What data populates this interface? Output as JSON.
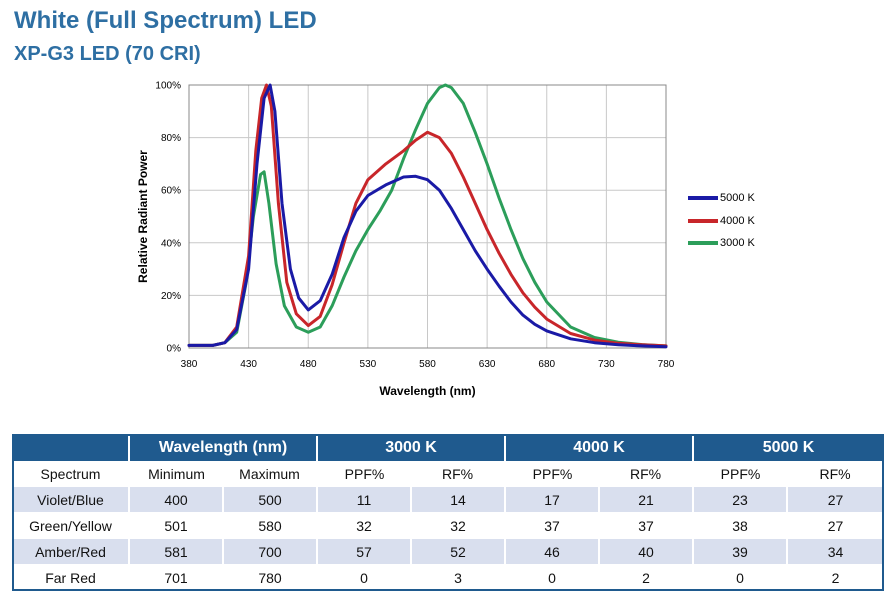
{
  "header": {
    "title": "White (Full Spectrum) LED",
    "subtitle": "XP-G3 LED (70 CRI)"
  },
  "chart_data": {
    "type": "line",
    "xlabel": "Wavelength (nm)",
    "ylabel": "Relative Radiant Power",
    "xlim": [
      380,
      780
    ],
    "ylim": [
      0,
      100
    ],
    "x_ticks": [
      380,
      430,
      480,
      530,
      580,
      630,
      680,
      730,
      780
    ],
    "y_ticks": [
      0,
      20,
      40,
      60,
      80,
      100
    ],
    "y_tick_labels": [
      "0%",
      "20%",
      "40%",
      "60%",
      "80%",
      "100%"
    ],
    "grid": true,
    "legend_position": "right",
    "series": [
      {
        "name": "5000 K",
        "color": "#1a1aa6",
        "points": [
          [
            380,
            1
          ],
          [
            400,
            1
          ],
          [
            410,
            2
          ],
          [
            420,
            7
          ],
          [
            430,
            30
          ],
          [
            437,
            70
          ],
          [
            443,
            95
          ],
          [
            448,
            100
          ],
          [
            452,
            90
          ],
          [
            458,
            55
          ],
          [
            465,
            30
          ],
          [
            472,
            19
          ],
          [
            480,
            14.5
          ],
          [
            490,
            18
          ],
          [
            500,
            28
          ],
          [
            510,
            42
          ],
          [
            520,
            52
          ],
          [
            530,
            58
          ],
          [
            545,
            62
          ],
          [
            560,
            65
          ],
          [
            570,
            65.3
          ],
          [
            580,
            64
          ],
          [
            590,
            60
          ],
          [
            600,
            53
          ],
          [
            610,
            45
          ],
          [
            620,
            37
          ],
          [
            630,
            30
          ],
          [
            640,
            23.5
          ],
          [
            650,
            17.5
          ],
          [
            660,
            12.5
          ],
          [
            670,
            9
          ],
          [
            680,
            6.5
          ],
          [
            700,
            3.5
          ],
          [
            720,
            2
          ],
          [
            740,
            1.2
          ],
          [
            760,
            0.8
          ],
          [
            780,
            0.5
          ]
        ]
      },
      {
        "name": "4000 K",
        "color": "#c8262a",
        "points": [
          [
            380,
            1
          ],
          [
            400,
            1
          ],
          [
            410,
            2
          ],
          [
            420,
            8
          ],
          [
            430,
            35
          ],
          [
            436,
            75
          ],
          [
            441,
            95
          ],
          [
            445,
            100
          ],
          [
            449,
            92
          ],
          [
            455,
            55
          ],
          [
            462,
            25
          ],
          [
            470,
            13
          ],
          [
            480,
            8.5
          ],
          [
            490,
            12
          ],
          [
            500,
            24
          ],
          [
            510,
            40
          ],
          [
            520,
            55
          ],
          [
            530,
            64
          ],
          [
            545,
            70
          ],
          [
            560,
            75
          ],
          [
            570,
            79
          ],
          [
            580,
            82
          ],
          [
            590,
            80
          ],
          [
            600,
            74
          ],
          [
            610,
            65
          ],
          [
            620,
            55
          ],
          [
            630,
            45
          ],
          [
            640,
            36
          ],
          [
            650,
            28
          ],
          [
            660,
            21
          ],
          [
            670,
            15.5
          ],
          [
            680,
            11
          ],
          [
            700,
            5.5
          ],
          [
            720,
            3
          ],
          [
            740,
            1.8
          ],
          [
            760,
            1.2
          ],
          [
            780,
            0.8
          ]
        ]
      },
      {
        "name": "3000 K",
        "color": "#2c9e5a",
        "points": [
          [
            380,
            1
          ],
          [
            400,
            1
          ],
          [
            410,
            2
          ],
          [
            420,
            6
          ],
          [
            428,
            25
          ],
          [
            434,
            50
          ],
          [
            440,
            66
          ],
          [
            443,
            67
          ],
          [
            447,
            55
          ],
          [
            453,
            32
          ],
          [
            460,
            16
          ],
          [
            470,
            8
          ],
          [
            480,
            6
          ],
          [
            490,
            8
          ],
          [
            500,
            16
          ],
          [
            510,
            27
          ],
          [
            520,
            37
          ],
          [
            530,
            45
          ],
          [
            540,
            52
          ],
          [
            550,
            60
          ],
          [
            560,
            72
          ],
          [
            570,
            83
          ],
          [
            580,
            93
          ],
          [
            590,
            99
          ],
          [
            595,
            100
          ],
          [
            600,
            99
          ],
          [
            610,
            93
          ],
          [
            620,
            82
          ],
          [
            630,
            70
          ],
          [
            640,
            57
          ],
          [
            650,
            45
          ],
          [
            660,
            34
          ],
          [
            670,
            25
          ],
          [
            680,
            17.5
          ],
          [
            700,
            8
          ],
          [
            720,
            4
          ],
          [
            740,
            2.2
          ],
          [
            760,
            1.3
          ],
          [
            780,
            0.8
          ]
        ]
      }
    ]
  },
  "table": {
    "group_headers": [
      "Wavelength (nm)",
      "3000 K",
      "4000 K",
      "5000 K"
    ],
    "sub_headers": [
      "Spectrum",
      "Minimum",
      "Maximum",
      "PPF%",
      "RF%",
      "PPF%",
      "RF%",
      "PPF%",
      "RF%"
    ],
    "rows": [
      [
        "Violet/Blue",
        "400",
        "500",
        "11",
        "14",
        "17",
        "21",
        "23",
        "27"
      ],
      [
        "Green/Yellow",
        "501",
        "580",
        "32",
        "32",
        "37",
        "37",
        "38",
        "27"
      ],
      [
        "Amber/Red",
        "581",
        "700",
        "57",
        "52",
        "46",
        "40",
        "39",
        "34"
      ],
      [
        "Far Red",
        "701",
        "780",
        "0",
        "3",
        "0",
        "2",
        "0",
        "2"
      ]
    ]
  }
}
